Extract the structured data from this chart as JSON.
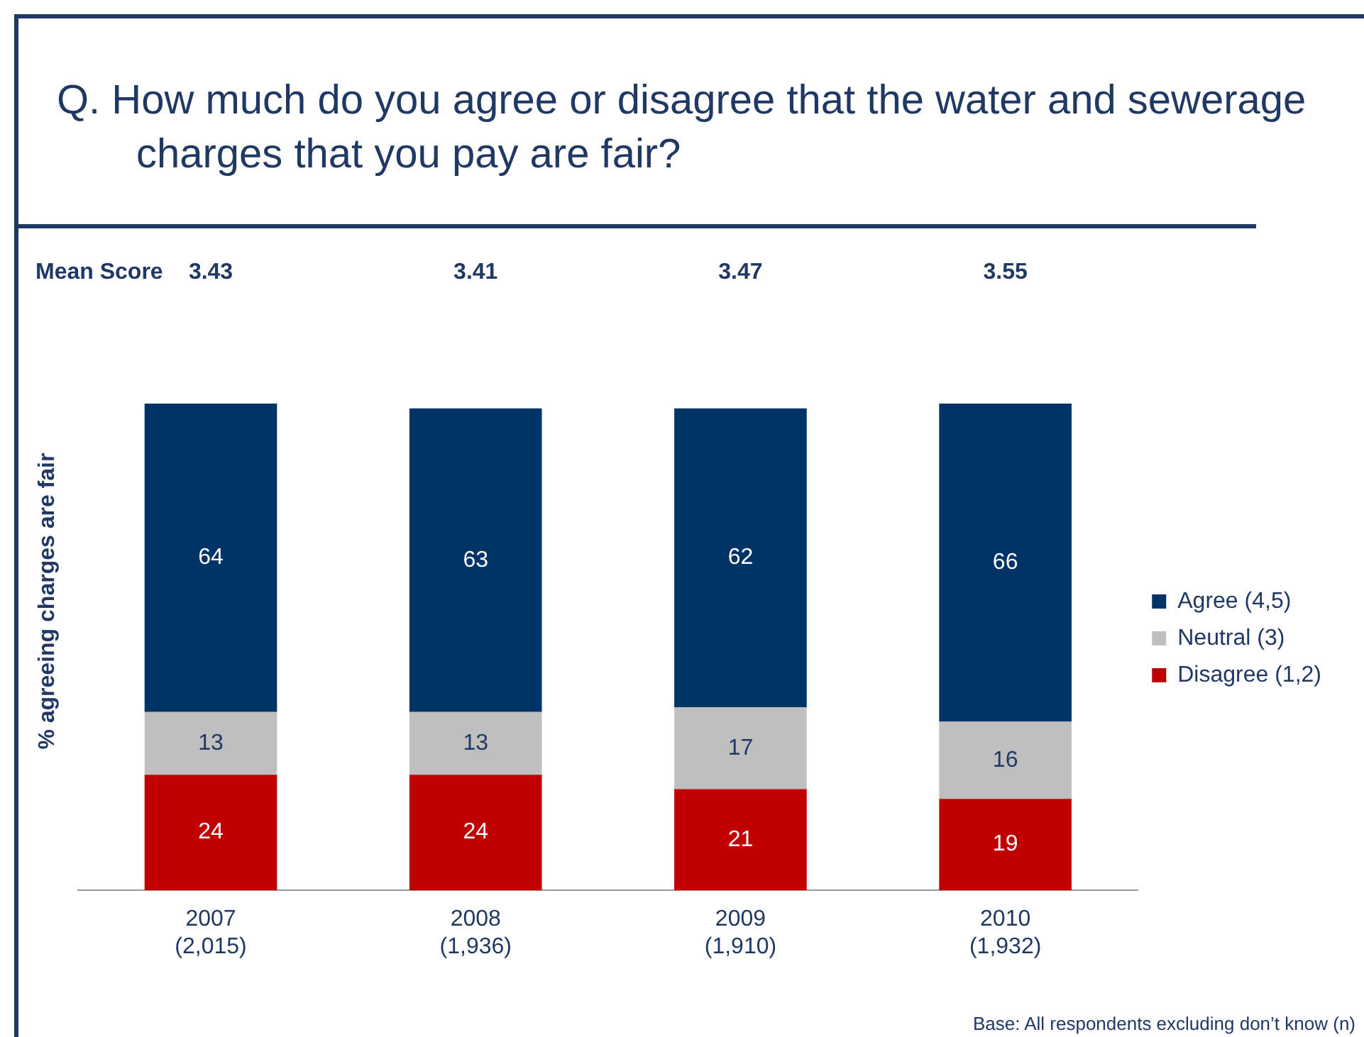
{
  "chart_data": {
    "type": "bar",
    "stacked": true,
    "title": "Q.  How much do you agree or disagree that the water and sewerage charges that you pay are fair?",
    "ylabel": "% agreeing charges are fair",
    "categories": [
      "2007\n(2,015)",
      "2008\n(1,936)",
      "2009\n(1,910)",
      "2010\n(1,932)"
    ],
    "series": [
      {
        "name": "Disagree (1,2)",
        "color": "#c00000",
        "values": [
          24,
          24,
          21,
          19
        ]
      },
      {
        "name": "Neutral (3)",
        "color": "#bfbfbf",
        "values": [
          13,
          13,
          17,
          16
        ]
      },
      {
        "name": "Agree (4,5)",
        "color": "#003366",
        "values": [
          64,
          63,
          62,
          66
        ]
      }
    ],
    "data_labels": true,
    "legend": "right",
    "tick_labels": "x",
    "grid": false,
    "annotations": [
      "Mean Score",
      "3.43",
      "3.41",
      "3.47",
      "3.55",
      "Base: All respondents excluding don’t know (n)"
    ]
  }
}
